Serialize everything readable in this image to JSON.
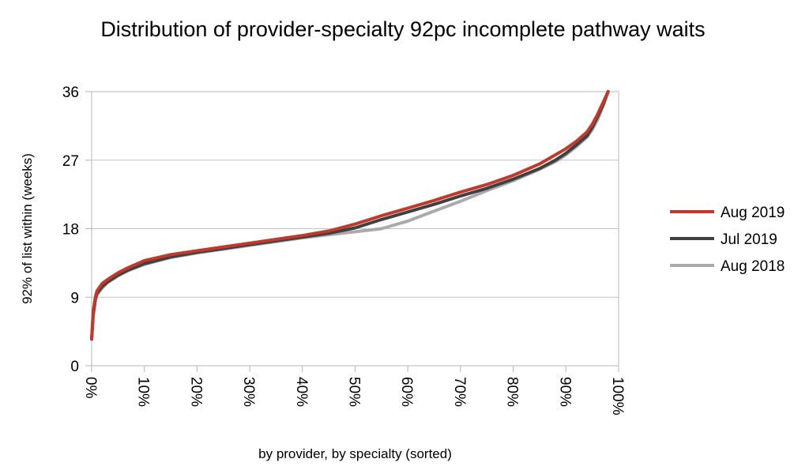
{
  "chart_data": {
    "type": "line",
    "title": "Distribution of provider-specialty 92pc incomplete pathway waits",
    "xlabel": "by provider, by specialty (sorted)",
    "ylabel": "92% of list within (weeks)",
    "xlim": [
      0,
      100
    ],
    "ylim": [
      0,
      36
    ],
    "yticks": [
      0,
      9,
      18,
      27,
      36
    ],
    "xticks": [
      0,
      10,
      20,
      30,
      40,
      50,
      60,
      70,
      80,
      90,
      100
    ],
    "x_tick_labels": [
      "0%",
      "10%",
      "20%",
      "30%",
      "40%",
      "50%",
      "60%",
      "70%",
      "80%",
      "90%",
      "100%"
    ],
    "y_tick_labels": [
      "0",
      "9",
      "18",
      "27",
      "36"
    ],
    "grid": "horizontal",
    "legend": "right",
    "series": [
      {
        "name": "Aug 2018",
        "color": "#aaaaaa",
        "x": [
          0,
          0.3,
          0.7,
          1,
          2,
          3,
          5,
          7,
          10,
          15,
          20,
          25,
          30,
          35,
          40,
          45,
          50,
          55,
          60,
          65,
          70,
          75,
          80,
          85,
          88,
          90,
          92,
          94,
          95,
          96,
          97,
          98
        ],
        "values": [
          3.5,
          6.5,
          8.5,
          9.3,
          10.2,
          10.9,
          11.8,
          12.5,
          13.3,
          14.2,
          14.8,
          15.3,
          15.8,
          16.3,
          16.8,
          17.2,
          17.6,
          18.0,
          19.0,
          20.3,
          21.6,
          23.0,
          24.3,
          25.8,
          26.8,
          27.7,
          28.8,
          30.0,
          31.0,
          32.3,
          34.0,
          36.0
        ]
      },
      {
        "name": "Jul 2019",
        "color": "#404040",
        "x": [
          0,
          0.3,
          0.7,
          1,
          2,
          3,
          5,
          7,
          10,
          15,
          20,
          25,
          30,
          35,
          40,
          45,
          50,
          55,
          60,
          65,
          70,
          75,
          80,
          85,
          88,
          90,
          92,
          94,
          95,
          96,
          97,
          98
        ],
        "values": [
          3.5,
          6.8,
          8.8,
          9.5,
          10.4,
          11.0,
          11.9,
          12.6,
          13.4,
          14.3,
          14.9,
          15.4,
          15.9,
          16.4,
          16.9,
          17.4,
          18.1,
          19.2,
          20.2,
          21.2,
          22.3,
          23.3,
          24.5,
          25.9,
          27.0,
          27.9,
          29.0,
          30.2,
          31.3,
          32.7,
          34.2,
          36.0
        ]
      },
      {
        "name": "Aug 2019",
        "color": "#c0392b",
        "x": [
          0,
          0.3,
          0.7,
          1,
          2,
          3,
          5,
          7,
          10,
          15,
          20,
          25,
          30,
          35,
          40,
          45,
          50,
          55,
          60,
          65,
          70,
          75,
          80,
          85,
          88,
          90,
          92,
          94,
          95,
          96,
          97,
          98
        ],
        "values": [
          3.5,
          7.2,
          9.0,
          9.8,
          10.8,
          11.3,
          12.2,
          12.9,
          13.8,
          14.6,
          15.1,
          15.6,
          16.1,
          16.6,
          17.1,
          17.7,
          18.6,
          19.7,
          20.7,
          21.7,
          22.8,
          23.8,
          25.0,
          26.5,
          27.7,
          28.5,
          29.5,
          30.7,
          31.7,
          33.0,
          34.5,
          36.0
        ]
      }
    ]
  }
}
